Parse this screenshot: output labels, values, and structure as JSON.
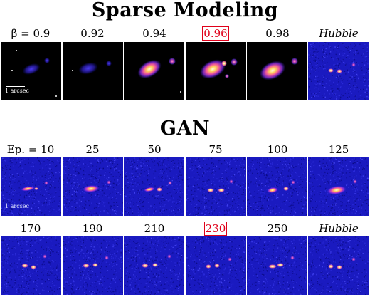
{
  "sparse": {
    "title": "Sparse Modeling",
    "labels": [
      "β = 0.9",
      "0.92",
      "0.94",
      "0.96",
      "0.98",
      "Hubble"
    ],
    "highlight_index": 3,
    "scalebar_label": "1 arcsec"
  },
  "gan": {
    "title": "GAN",
    "row1_labels": [
      "Ep. = 10",
      "25",
      "50",
      "75",
      "100",
      "125"
    ],
    "row2_labels": [
      "170",
      "190",
      "210",
      "230",
      "250",
      "Hubble"
    ],
    "highlight_label": "230",
    "scalebar_label": "1 arcsec"
  },
  "colors": {
    "highlight": "#e0001a",
    "noise_background": "#1a1ac0",
    "sparse_background": "#000000"
  }
}
